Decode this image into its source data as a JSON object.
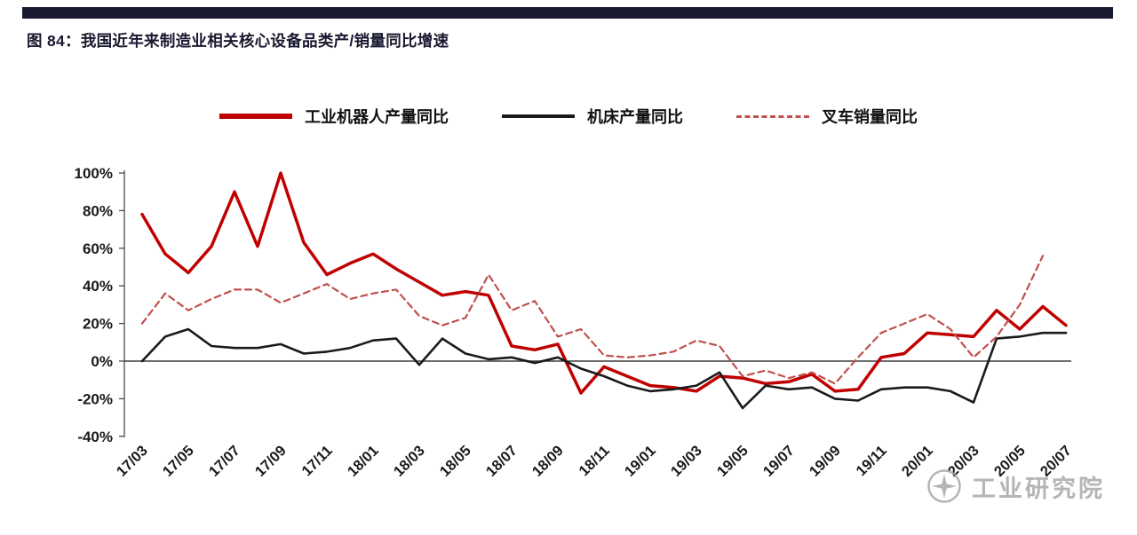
{
  "header": {
    "title": "图 84：我国近年来制造业相关核心设备品类产/销量同比增速",
    "bar_color": "#191930",
    "title_color": "#191930"
  },
  "watermark": {
    "icon": "compass-logo",
    "text": "工业研究院",
    "color": "#a3a3a3"
  },
  "chart_data": {
    "type": "line",
    "title": "我国近年来制造业相关核心设备品类产/销量同比增速",
    "xlabel": "",
    "ylabel": "",
    "ylim": [
      -40,
      100
    ],
    "yticks": [
      100,
      80,
      60,
      40,
      20,
      0,
      -20,
      -40
    ],
    "tick_suffix": "%",
    "x_label_step": 2,
    "grid": false,
    "zero_line": true,
    "legend_position": "top",
    "axis_color": "#4a4a4a",
    "tick_text_color": "#1a1a1a",
    "x": [
      "17/03",
      "17/04",
      "17/05",
      "17/06",
      "17/07",
      "17/08",
      "17/09",
      "17/10",
      "17/11",
      "17/12",
      "18/01",
      "18/02",
      "18/03",
      "18/04",
      "18/05",
      "18/06",
      "18/07",
      "18/08",
      "18/09",
      "18/10",
      "18/11",
      "18/12",
      "19/01",
      "19/02",
      "19/03",
      "19/04",
      "19/05",
      "19/06",
      "19/07",
      "19/08",
      "19/09",
      "19/10",
      "19/11",
      "19/12",
      "20/01",
      "20/02",
      "20/03",
      "20/04",
      "20/05",
      "20/06",
      "20/07"
    ],
    "series": [
      {
        "name": "工业机器人产量同比",
        "key": "industrial-robot-production-yoy",
        "color": "#c00000",
        "style": "solid",
        "width": 3.5,
        "values": [
          78,
          57,
          47,
          61,
          90,
          61,
          100,
          63,
          46,
          52,
          57,
          49,
          42,
          35,
          37,
          35,
          8,
          6,
          9,
          -17,
          -3,
          -8,
          -13,
          -14,
          -16,
          -8,
          -9,
          -12,
          -11,
          -7,
          -16,
          -15,
          2,
          4,
          15,
          14,
          13,
          27,
          17,
          29,
          19
        ]
      },
      {
        "name": "机床产量同比",
        "key": "machine-tool-production-yoy",
        "color": "#1a1a1a",
        "style": "solid",
        "width": 2.6,
        "values": [
          0,
          13,
          17,
          8,
          7,
          7,
          9,
          4,
          5,
          7,
          11,
          12,
          -2,
          12,
          4,
          1,
          2,
          -1,
          2,
          -4,
          -8,
          -13,
          -16,
          -15,
          -13,
          -6,
          -25,
          -13,
          -15,
          -14,
          -20,
          -21,
          -15,
          -14,
          -14,
          -16,
          -22,
          12,
          13,
          15,
          15
        ]
      },
      {
        "name": "叉车销量同比",
        "key": "forklift-sales-yoy",
        "color": "#c0504d",
        "style": "dashed",
        "width": 2.2,
        "values": [
          20,
          36,
          27,
          33,
          38,
          38,
          31,
          36,
          41,
          33,
          36,
          38,
          24,
          19,
          23,
          46,
          27,
          32,
          13,
          17,
          3,
          2,
          3,
          5,
          11,
          8,
          -8,
          -5,
          -9,
          -6,
          -12,
          2,
          15,
          20,
          25,
          17,
          2,
          13,
          30,
          56,
          null
        ]
      }
    ]
  }
}
